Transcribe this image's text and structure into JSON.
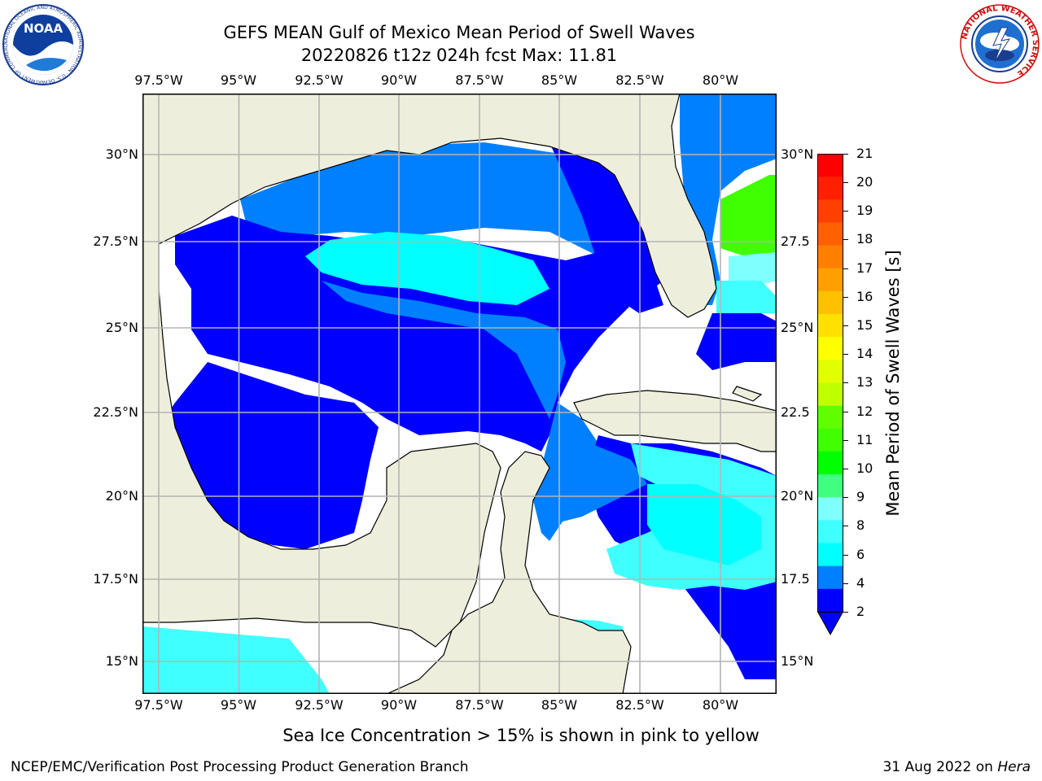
{
  "header": {
    "title_line1": "GEFS MEAN Gulf of Mexico Mean Period of Swell Waves",
    "title_line2": "20220826 t12z 024h fcst   Max: 11.81"
  },
  "logos": {
    "noaa_text": "NOAA",
    "noaa_ring_text": "NATIONAL OCEANIC AND ATMOSPHERIC ADMINISTRATION · U.S. DEPARTMENT OF COMMERCE",
    "nws_ring_text": "NATIONAL WEATHER SERVICE"
  },
  "map": {
    "lon_labels": [
      "97.5°W",
      "95°W",
      "92.5°W",
      "90°W",
      "87.5°W",
      "85°W",
      "82.5°W",
      "80°W"
    ],
    "lat_labels": [
      "30°N",
      "27.5°N",
      "25°N",
      "22.5°N",
      "20°N",
      "17.5°N",
      "15°N"
    ],
    "lat_labels_right": [
      "30°N",
      "27.5",
      "25°N",
      "22.5",
      "20°N",
      "17.5",
      "15°N"
    ],
    "colors": {
      "land": "#eeeedc",
      "ocean_blank": "#ffffff",
      "grid": "#b4b4b4"
    },
    "field_classes": [
      {
        "range": "2-4",
        "color": "#0000ff"
      },
      {
        "range": "4-6",
        "color": "#0080ff"
      },
      {
        "range": "6-7",
        "color": "#00ffff"
      },
      {
        "range": "7-8",
        "color": "#40ffff"
      },
      {
        "range": "10-11",
        "color": "#40ff00"
      }
    ]
  },
  "colorbar": {
    "label": "Mean Period of Swell Waves [s]",
    "tick_labels": [
      "21",
      "20",
      "19",
      "18",
      "17",
      "16",
      "15",
      "14",
      "13",
      "12",
      "11",
      "10",
      "9",
      "8",
      "6",
      "4",
      "2"
    ],
    "colors": [
      "#ff0000",
      "#ff2000",
      "#ff4000",
      "#ff6000",
      "#ff8000",
      "#ffa000",
      "#ffc000",
      "#ffe000",
      "#ffff00",
      "#e0ff00",
      "#c0ff00",
      "#60ff00",
      "#40ff00",
      "#00ff00",
      "#40ff80",
      "#80ffff",
      "#40ffff",
      "#00ffff",
      "#0080ff",
      "#0000ff"
    ],
    "extend_color": "#0000ff"
  },
  "footer": {
    "note": "Sea Ice Concentration > 15% is shown in pink to yellow",
    "left": "NCEP/EMC/Verification Post Processing Product Generation Branch",
    "right_date": "31 Aug 2022 on ",
    "right_host": "Hera"
  }
}
